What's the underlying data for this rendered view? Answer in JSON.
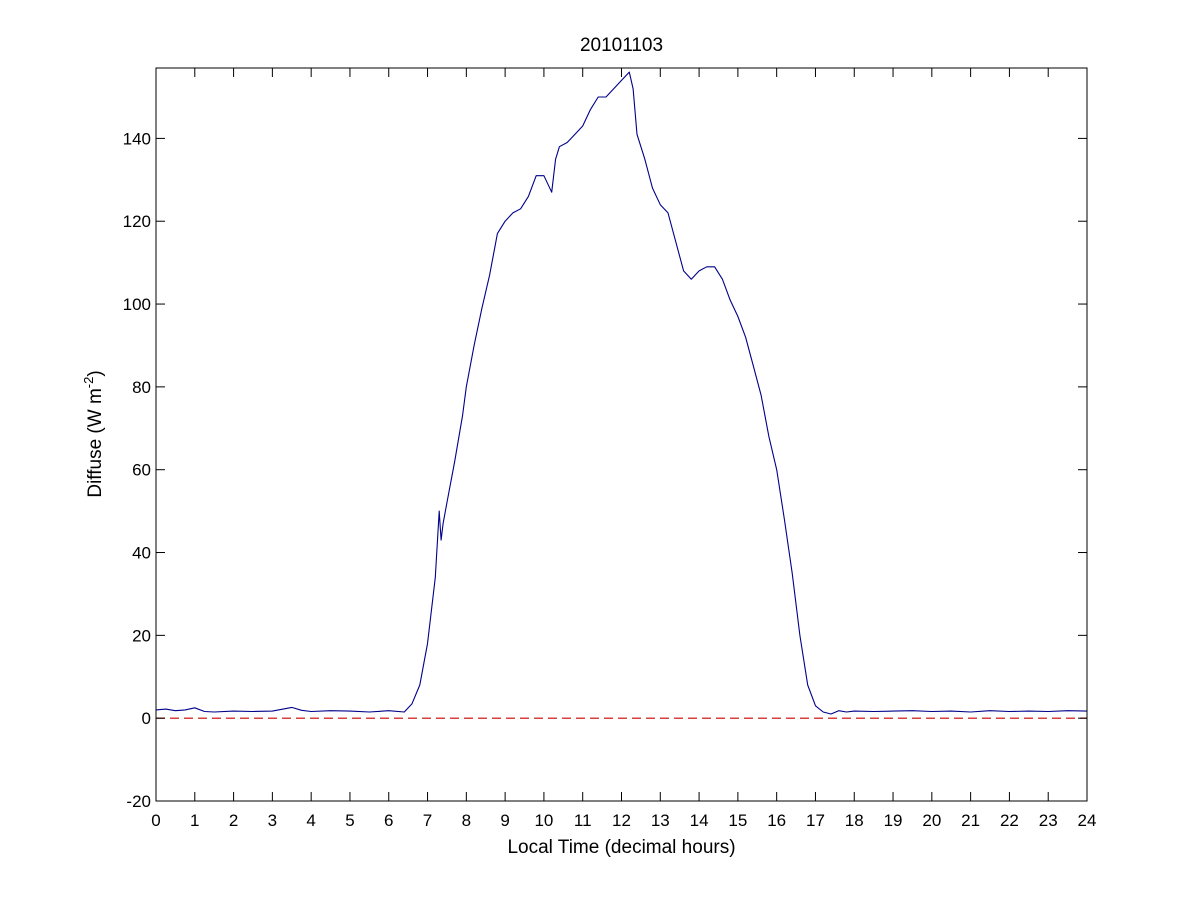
{
  "chart_data": {
    "type": "line",
    "title": "20101103",
    "xlabel": "Local Time (decimal hours)",
    "ylabel_main": "Diffuse (W m",
    "ylabel_sup": "-2",
    "ylabel_close": ")",
    "xlim": [
      0,
      24
    ],
    "ylim": [
      -20,
      157
    ],
    "xticks": [
      0,
      1,
      2,
      3,
      4,
      5,
      6,
      7,
      8,
      9,
      10,
      11,
      12,
      13,
      14,
      15,
      16,
      17,
      18,
      19,
      20,
      21,
      22,
      23,
      24
    ],
    "yticks": [
      -20,
      0,
      20,
      40,
      60,
      80,
      100,
      120,
      140
    ],
    "grid": false,
    "series": [
      {
        "color": "#00008b",
        "x": [
          0,
          0.25,
          0.5,
          0.75,
          1.0,
          1.25,
          1.5,
          2.0,
          2.5,
          3.0,
          3.5,
          3.75,
          4.0,
          4.5,
          5.0,
          5.5,
          6.0,
          6.4,
          6.6,
          6.8,
          7.0,
          7.2,
          7.3,
          7.35,
          7.4,
          7.5,
          7.7,
          7.9,
          8.0,
          8.2,
          8.4,
          8.6,
          8.8,
          9.0,
          9.2,
          9.4,
          9.6,
          9.8,
          10.0,
          10.2,
          10.3,
          10.4,
          10.6,
          10.8,
          11.0,
          11.2,
          11.4,
          11.6,
          11.8,
          12.0,
          12.2,
          12.3,
          12.4,
          12.6,
          12.8,
          13.0,
          13.2,
          13.4,
          13.6,
          13.8,
          14.0,
          14.2,
          14.4,
          14.6,
          14.8,
          15.0,
          15.2,
          15.4,
          15.6,
          15.8,
          16.0,
          16.2,
          16.4,
          16.6,
          16.8,
          17.0,
          17.2,
          17.4,
          17.6,
          17.8,
          18.0,
          18.5,
          19.0,
          19.5,
          20.0,
          20.5,
          21.0,
          21.5,
          22.0,
          22.5,
          23.0,
          23.5,
          24.0
        ],
        "y": [
          2.0,
          2.2,
          1.8,
          2.0,
          2.5,
          1.6,
          1.5,
          1.7,
          1.6,
          1.7,
          2.6,
          1.9,
          1.6,
          1.8,
          1.7,
          1.5,
          1.8,
          1.5,
          3.5,
          8.0,
          18.0,
          34.0,
          50.0,
          43.0,
          47.0,
          52.0,
          62.0,
          73.0,
          80.0,
          90.0,
          99.0,
          107.0,
          117.0,
          120.0,
          122.0,
          123.0,
          126.0,
          131.0,
          131.0,
          127.0,
          135.0,
          138.0,
          139.0,
          141.0,
          143.0,
          147.0,
          150.0,
          150.0,
          152.0,
          154.0,
          156.0,
          152.0,
          141.0,
          135.0,
          128.0,
          124.0,
          122.0,
          115.0,
          108.0,
          106.0,
          108.0,
          109.0,
          109.0,
          106.0,
          101.0,
          97.0,
          92.0,
          85.0,
          78.0,
          68.0,
          60.0,
          48.0,
          35.0,
          20.0,
          8.0,
          3.0,
          1.5,
          1.0,
          1.8,
          1.5,
          1.7,
          1.6,
          1.7,
          1.8,
          1.6,
          1.7,
          1.5,
          1.8,
          1.6,
          1.7,
          1.6,
          1.8,
          1.7
        ]
      }
    ],
    "reference_line": {
      "y": 0,
      "style": "dashed",
      "color": "#cc0000"
    }
  }
}
